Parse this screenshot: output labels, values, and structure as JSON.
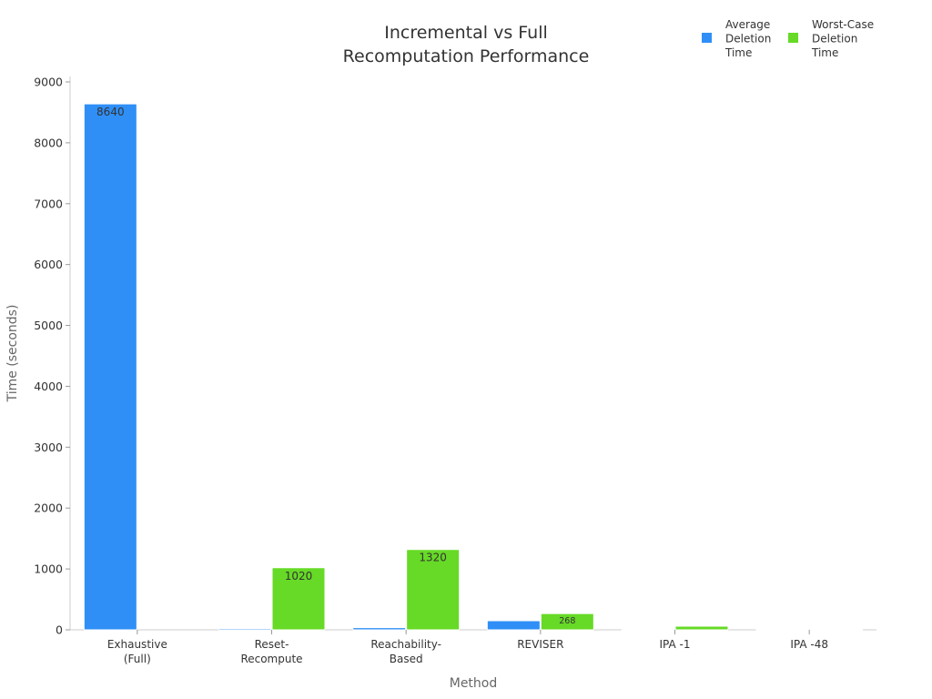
{
  "chart_data": {
    "type": "bar",
    "title": [
      "Incremental vs Full",
      "Recomputation Performance"
    ],
    "xlabel": "Method",
    "ylabel": "Time (seconds)",
    "ylim": [
      0,
      9000
    ],
    "yticks": [
      0,
      1000,
      2000,
      3000,
      4000,
      5000,
      6000,
      7000,
      8000,
      9000
    ],
    "categories": [
      [
        "Exhaustive",
        "(Full)"
      ],
      [
        "Reset-",
        "Recompute"
      ],
      [
        "Reachability-",
        "Based"
      ],
      [
        "REVISER"
      ],
      [
        "IPA -1"
      ],
      [
        "IPA -48"
      ]
    ],
    "legend_position": "top-right",
    "grid": false,
    "series": [
      {
        "name": [
          "Average",
          "Deletion",
          "Time"
        ],
        "color": "#2F8FF7",
        "values": [
          8640,
          20,
          35,
          150,
          3,
          1
        ],
        "labels": [
          "8640",
          "",
          "",
          "",
          "",
          ""
        ]
      },
      {
        "name": [
          "Worst-Case",
          "Deletion",
          "Time"
        ],
        "color": "#66DA26",
        "values": [
          0,
          1020,
          1320,
          268,
          60,
          5
        ],
        "labels": [
          "",
          "1020",
          "1320",
          "268",
          "",
          ""
        ]
      }
    ]
  }
}
